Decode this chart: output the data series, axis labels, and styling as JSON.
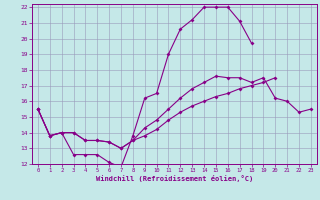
{
  "xlabel": "Windchill (Refroidissement éolien,°C)",
  "xlim": [
    -0.5,
    23.5
  ],
  "ylim": [
    12,
    22.2
  ],
  "xticks": [
    0,
    1,
    2,
    3,
    4,
    5,
    6,
    7,
    8,
    9,
    10,
    11,
    12,
    13,
    14,
    15,
    16,
    17,
    18,
    19,
    20,
    21,
    22,
    23
  ],
  "yticks": [
    12,
    13,
    14,
    15,
    16,
    17,
    18,
    19,
    20,
    21,
    22
  ],
  "bg_color": "#c5e8e8",
  "line_color": "#880088",
  "grid_color": "#9999bb",
  "line1_x": [
    0,
    1,
    2,
    3,
    4,
    5,
    6,
    7,
    8,
    9,
    10,
    11,
    12,
    13,
    14,
    15,
    16,
    17,
    18,
    19,
    20,
    21,
    22,
    23
  ],
  "line1_y": [
    15.5,
    13.8,
    14.0,
    12.6,
    12.6,
    12.6,
    12.1,
    11.8,
    13.8,
    16.2,
    16.5,
    19.0,
    20.6,
    21.2,
    22.0,
    22.0,
    22.0,
    21.1,
    19.7,
    null,
    null,
    null,
    null,
    null
  ],
  "line2_x": [
    0,
    1,
    2,
    3,
    4,
    5,
    6,
    7,
    8,
    9,
    10,
    11,
    12,
    13,
    14,
    15,
    16,
    17,
    18,
    19,
    20,
    21,
    22,
    23
  ],
  "line2_y": [
    15.5,
    13.8,
    14.0,
    14.0,
    13.5,
    13.5,
    13.4,
    13.0,
    13.5,
    14.3,
    14.8,
    15.5,
    16.2,
    16.8,
    17.2,
    17.6,
    17.5,
    17.5,
    17.2,
    17.5,
    16.2,
    16.0,
    15.3,
    15.5
  ],
  "line3_x": [
    0,
    1,
    2,
    3,
    4,
    5,
    6,
    7,
    8,
    9,
    10,
    11,
    12,
    13,
    14,
    15,
    16,
    17,
    18,
    19,
    20,
    21,
    22,
    23
  ],
  "line3_y": [
    15.5,
    13.8,
    14.0,
    14.0,
    13.5,
    13.5,
    13.4,
    13.0,
    13.5,
    13.8,
    14.2,
    14.8,
    15.3,
    15.7,
    16.0,
    16.3,
    16.5,
    16.8,
    17.0,
    17.2,
    17.5,
    null,
    null,
    null
  ]
}
